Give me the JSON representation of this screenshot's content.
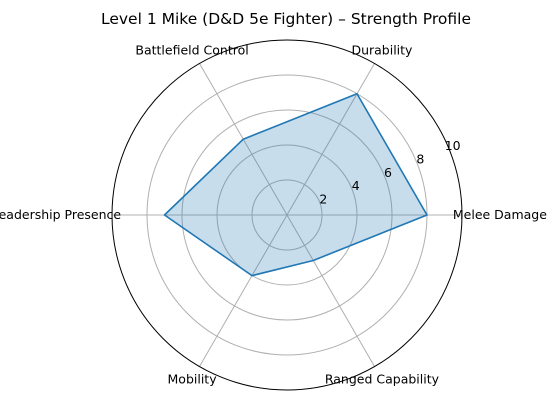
{
  "chart_data": {
    "type": "radar",
    "title": "Level 1 Mike (D&D 5e Fighter) – Strength Profile",
    "categories": [
      "Melee Damage",
      "Durability",
      "Battlefield Control",
      "Leadership Presence",
      "Mobility",
      "Ranged Capability"
    ],
    "series": [
      {
        "values": [
          8,
          8,
          5,
          7,
          4,
          3
        ]
      }
    ],
    "rlim": [
      0,
      10
    ],
    "rticks": [
      2,
      4,
      6,
      8,
      10
    ],
    "grid": true,
    "colors": {
      "line": "#1f77b4",
      "fill": "#1f77b4",
      "grid": "#b0b0b0",
      "frame": "#000000"
    }
  }
}
